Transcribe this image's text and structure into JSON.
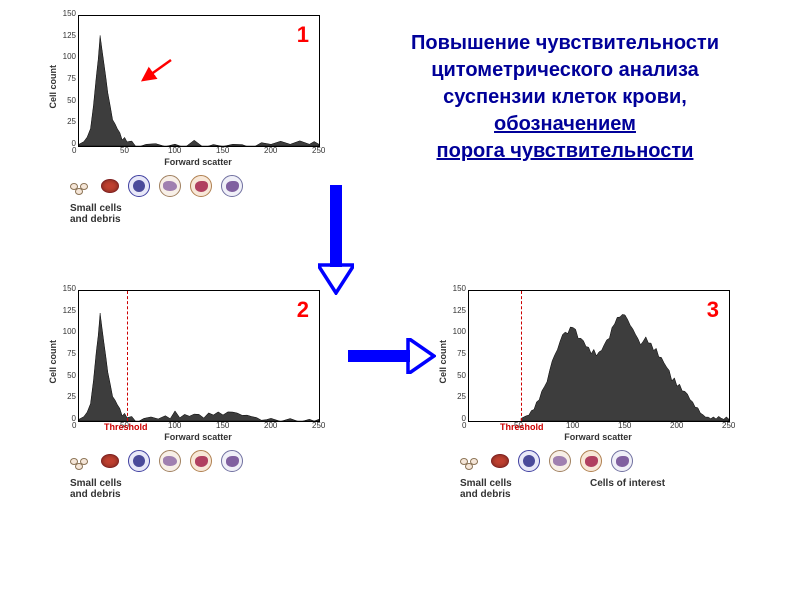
{
  "title": {
    "line1": "Повышение чувствительности",
    "line2": "цитометрического анализа",
    "line3": "суспензии клеток крови,",
    "line4": "обозначением",
    "line5": "порога чувствительности",
    "color": "#000099",
    "fontsize": 20
  },
  "labels": {
    "xlabel": "Forward scatter",
    "ylabel": "Cell count",
    "threshold": "Threshold",
    "small_cells": "Small cells\nand debris",
    "cells_interest": "Cells of interest"
  },
  "panel_nums": {
    "p1": "1",
    "p2": "2",
    "p3": "3"
  },
  "axis": {
    "xlim": [
      0,
      250
    ],
    "ylim": [
      0,
      150
    ],
    "xticks": [
      0,
      50,
      100,
      150,
      200,
      250
    ],
    "yticks": [
      0,
      25,
      50,
      75,
      100,
      125,
      150
    ],
    "tick_fontsize": 8,
    "label_fontsize": 9
  },
  "colors": {
    "fill": "#3d3d3d",
    "stroke": "#000000",
    "threshold": "#cc0000",
    "arrow": "#0000ff",
    "red_arrow": "#ff0000",
    "panel_num": "#ff0000",
    "bg": "#ffffff"
  },
  "chart1": {
    "type": "area",
    "threshold": null,
    "data": [
      [
        0,
        2
      ],
      [
        5,
        5
      ],
      [
        12,
        20
      ],
      [
        18,
        80
      ],
      [
        22,
        128
      ],
      [
        26,
        100
      ],
      [
        30,
        60
      ],
      [
        35,
        30
      ],
      [
        40,
        15
      ],
      [
        45,
        8
      ],
      [
        50,
        5
      ],
      [
        60,
        3
      ],
      [
        80,
        2
      ],
      [
        100,
        2
      ],
      [
        120,
        2
      ],
      [
        140,
        2
      ],
      [
        160,
        2
      ],
      [
        180,
        2
      ],
      [
        200,
        2
      ],
      [
        220,
        2
      ],
      [
        240,
        2
      ],
      [
        250,
        2
      ]
    ]
  },
  "chart2": {
    "type": "area",
    "threshold_x": 50,
    "data": [
      [
        0,
        2
      ],
      [
        5,
        5
      ],
      [
        12,
        20
      ],
      [
        18,
        80
      ],
      [
        22,
        125
      ],
      [
        26,
        95
      ],
      [
        30,
        55
      ],
      [
        35,
        28
      ],
      [
        40,
        14
      ],
      [
        45,
        7
      ],
      [
        50,
        4
      ],
      [
        60,
        3
      ],
      [
        75,
        4
      ],
      [
        90,
        6
      ],
      [
        100,
        7
      ],
      [
        110,
        8
      ],
      [
        120,
        8
      ],
      [
        130,
        8
      ],
      [
        140,
        7
      ],
      [
        150,
        7
      ],
      [
        160,
        6
      ],
      [
        170,
        6
      ],
      [
        180,
        5
      ],
      [
        190,
        5
      ],
      [
        200,
        4
      ],
      [
        220,
        3
      ],
      [
        240,
        2
      ],
      [
        250,
        2
      ]
    ]
  },
  "chart3": {
    "type": "area",
    "threshold_x": 50,
    "data": [
      [
        50,
        3
      ],
      [
        55,
        6
      ],
      [
        60,
        12
      ],
      [
        65,
        22
      ],
      [
        70,
        35
      ],
      [
        75,
        50
      ],
      [
        80,
        68
      ],
      [
        85,
        82
      ],
      [
        90,
        95
      ],
      [
        95,
        102
      ],
      [
        100,
        108
      ],
      [
        105,
        100
      ],
      [
        110,
        92
      ],
      [
        115,
        85
      ],
      [
        120,
        78
      ],
      [
        125,
        80
      ],
      [
        130,
        88
      ],
      [
        135,
        100
      ],
      [
        140,
        112
      ],
      [
        145,
        120
      ],
      [
        150,
        118
      ],
      [
        155,
        110
      ],
      [
        160,
        100
      ],
      [
        165,
        92
      ],
      [
        170,
        98
      ],
      [
        175,
        90
      ],
      [
        180,
        80
      ],
      [
        185,
        72
      ],
      [
        190,
        62
      ],
      [
        195,
        50
      ],
      [
        200,
        42
      ],
      [
        205,
        35
      ],
      [
        210,
        28
      ],
      [
        215,
        20
      ],
      [
        220,
        15
      ],
      [
        225,
        10
      ],
      [
        230,
        7
      ],
      [
        235,
        5
      ],
      [
        240,
        3
      ],
      [
        245,
        2
      ],
      [
        250,
        2
      ]
    ]
  },
  "cell_icons": {
    "debris_cluster": {
      "bg": "#f5e6d8",
      "border": "#8b7355"
    },
    "rbc": {
      "bg": "#c04030",
      "border": "#802020"
    },
    "lymphocyte": {
      "bg": "#e8e8f8",
      "border": "#4040a0",
      "nucleus": "#4a4a9a"
    },
    "granulocyte": {
      "bg": "#f8f0e8",
      "border": "#a08060",
      "nucleus": "#a080b0"
    },
    "monocyte": {
      "bg": "#f8e8d8",
      "border": "#b08050",
      "nucleus": "#b04060"
    },
    "neutrophil": {
      "bg": "#f0f0f8",
      "border": "#7070a0",
      "nucleus": "#8060a0"
    }
  }
}
